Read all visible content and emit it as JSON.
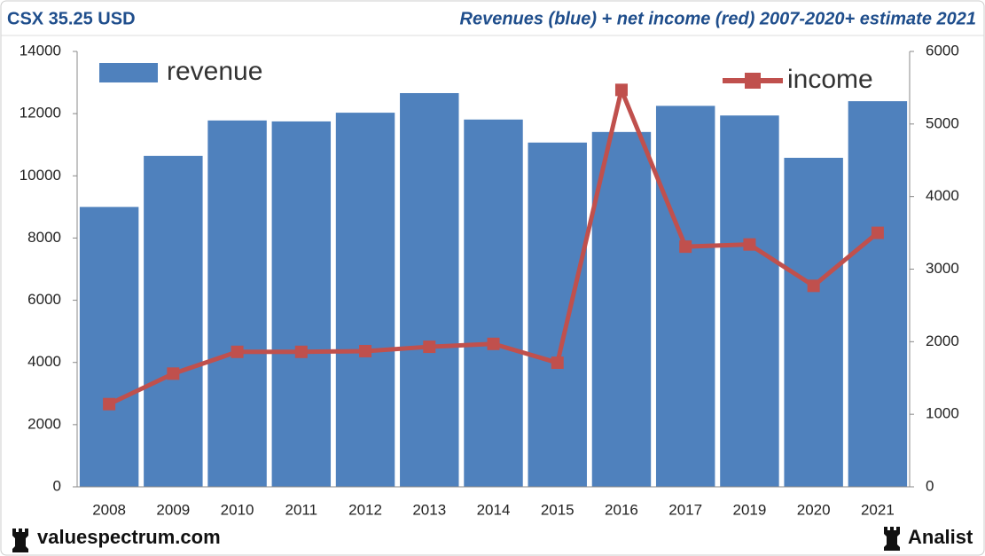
{
  "header": {
    "ticker": "CSX 35.25 USD"
  },
  "footer": {
    "site": "valuespectrum.com",
    "brand": "Analist"
  },
  "chart_data": {
    "type": "bar",
    "title": "Revenues (blue) + net income (red) 2007-2020+ estimate 2021",
    "categories": [
      "2008",
      "2009",
      "2010",
      "2011",
      "2012",
      "2013",
      "2014",
      "2015",
      "2016",
      "2017",
      "2019",
      "2020",
      "2021"
    ],
    "series": [
      {
        "name": "revenue",
        "type": "bar",
        "color": "#4f81bd",
        "values": [
          9000,
          10640,
          11780,
          11750,
          12030,
          12660,
          11810,
          11070,
          11410,
          12250,
          11940,
          10580,
          12400
        ]
      },
      {
        "name": "income",
        "type": "line",
        "axis": "y2",
        "color": "#c0504d",
        "values": [
          1140,
          1560,
          1860,
          1860,
          1870,
          1930,
          1970,
          1710,
          5470,
          3310,
          3340,
          2770,
          3500
        ]
      }
    ],
    "ylim": [
      0,
      14000
    ],
    "yticks": [
      0,
      2000,
      4000,
      6000,
      8000,
      10000,
      12000,
      14000
    ],
    "y2lim": [
      0,
      6000
    ],
    "y2ticks": [
      0,
      1000,
      2000,
      3000,
      4000,
      5000,
      6000
    ],
    "grid": false
  }
}
